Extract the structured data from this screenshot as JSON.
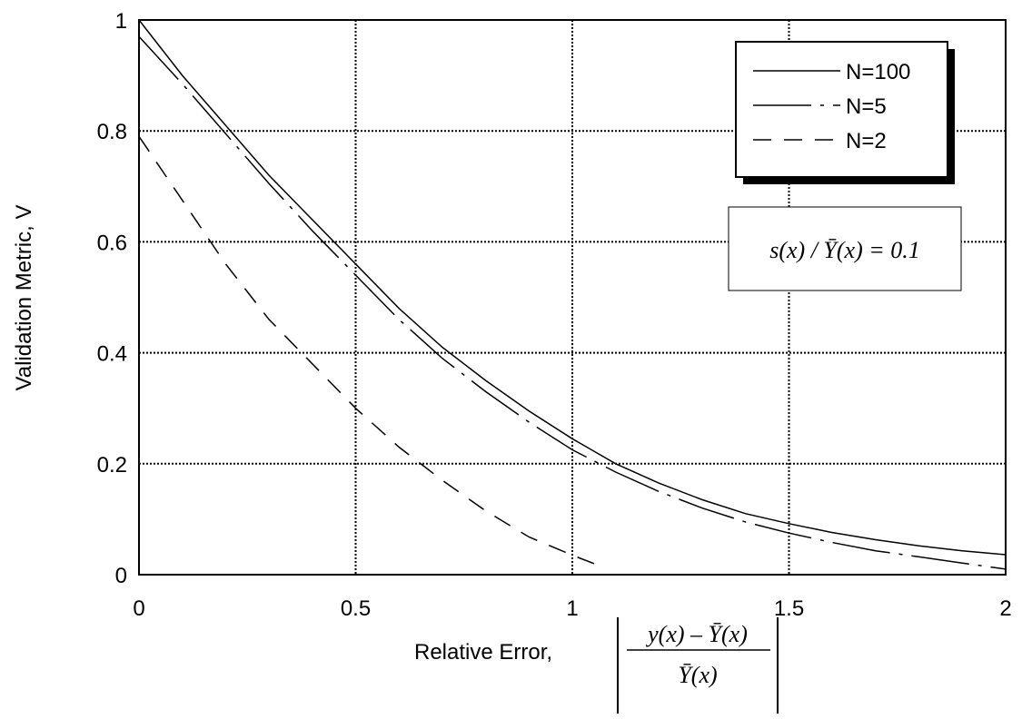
{
  "chart_data": {
    "type": "line",
    "xlabel": "Relative Error,",
    "xlabel_math": {
      "numerator": [
        "y",
        "(x) – ",
        "Ȳ",
        "(x)"
      ],
      "denominator": [
        "Ȳ",
        "(x)"
      ]
    },
    "ylabel": "Validation Metric, V",
    "xlim": [
      0,
      2
    ],
    "ylim": [
      0,
      1
    ],
    "x_ticks": [
      0,
      0.5,
      1,
      1.5,
      2
    ],
    "x_tick_labels": [
      "0",
      "0.5",
      "1",
      "1.5",
      "2"
    ],
    "y_ticks": [
      0,
      0.2,
      0.4,
      0.6,
      0.8,
      1
    ],
    "y_tick_labels": [
      "0",
      "0.2",
      "0.4",
      "0.6",
      "0.8",
      "1"
    ],
    "grid": true,
    "legend_position": "top-right",
    "annotation": "s(x) / Ȳ(x) = 0.1",
    "series": [
      {
        "name": "N=100",
        "line_style": "solid",
        "x": [
          0,
          0.1,
          0.2,
          0.3,
          0.4,
          0.5,
          0.6,
          0.7,
          0.8,
          0.9,
          1.0,
          1.1,
          1.2,
          1.3,
          1.4,
          1.5,
          1.6,
          1.7,
          1.8,
          1.9,
          2.0
        ],
        "y": [
          1.0,
          0.9,
          0.81,
          0.72,
          0.64,
          0.56,
          0.48,
          0.41,
          0.35,
          0.295,
          0.245,
          0.2,
          0.165,
          0.135,
          0.11,
          0.092,
          0.076,
          0.063,
          0.052,
          0.043,
          0.036
        ]
      },
      {
        "name": "N=5",
        "line_style": "long-dash",
        "x": [
          0,
          0.1,
          0.2,
          0.3,
          0.4,
          0.5,
          0.6,
          0.7,
          0.8,
          0.9,
          1.0,
          1.1,
          1.2,
          1.3,
          1.4,
          1.5,
          1.6,
          1.7,
          1.8,
          1.9,
          2.0
        ],
        "y": [
          0.97,
          0.885,
          0.795,
          0.705,
          0.62,
          0.54,
          0.46,
          0.39,
          0.33,
          0.275,
          0.225,
          0.185,
          0.15,
          0.12,
          0.095,
          0.075,
          0.058,
          0.043,
          0.032,
          0.021,
          0.01
        ]
      },
      {
        "name": "N=2",
        "line_style": "short-dash",
        "x": [
          0,
          0.1,
          0.2,
          0.3,
          0.4,
          0.5,
          0.6,
          0.7,
          0.8,
          0.9,
          1.0,
          1.05
        ],
        "y": [
          0.79,
          0.675,
          0.56,
          0.46,
          0.38,
          0.3,
          0.23,
          0.17,
          0.115,
          0.068,
          0.035,
          0.02
        ]
      }
    ]
  }
}
